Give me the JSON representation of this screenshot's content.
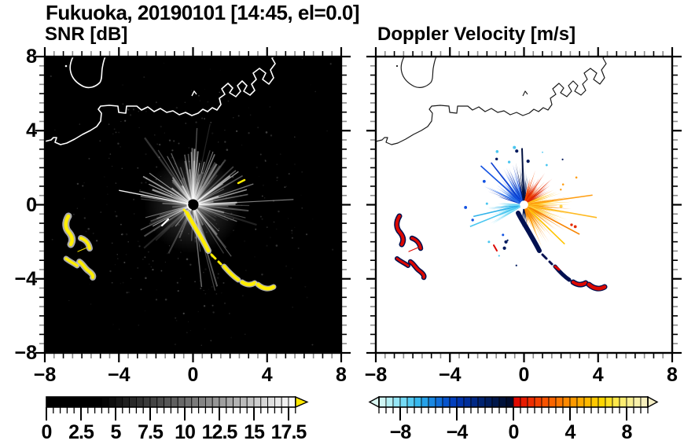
{
  "figure": {
    "title": "Fukuoka, 20190101 [14:45, el=0.0]"
  },
  "panels": {
    "snr": {
      "title": "SNR [dB]",
      "x_tick_labels": [
        "−8",
        "−4",
        "0",
        "4",
        "8"
      ],
      "y_tick_labels": [
        "8",
        "4",
        "0",
        "−4",
        "−8"
      ],
      "x_tick_values": [
        -8,
        -4,
        0,
        4,
        8
      ],
      "y_tick_values": [
        8,
        4,
        0,
        -4,
        -8
      ],
      "background": "#000000",
      "coast_color": "#ffffff"
    },
    "vel": {
      "title": "Doppler Velocity [m/s]",
      "x_tick_labels": [
        "−8",
        "−4",
        "0",
        "4",
        "8"
      ],
      "x_tick_values": [
        -8,
        -4,
        0,
        4,
        8
      ],
      "background": "#ffffff",
      "coast_color": "#1a1a1a"
    }
  },
  "axes": {
    "min": -8,
    "max": 8,
    "major_step": 4,
    "minor_step": 0.5
  },
  "colorbars": {
    "snr": {
      "tick_labels": [
        "0",
        "2.5",
        "5",
        "7.5",
        "10",
        "12.5",
        "15",
        "17.5"
      ],
      "tick_values": [
        0,
        2.5,
        5,
        7.5,
        10,
        12.5,
        15,
        17.5
      ],
      "range": [
        0,
        18
      ],
      "cell_step": 0.5,
      "colormap": "grayscale",
      "gray_ramp": [
        4,
        18
      ],
      "overflow_arrow_color": "#ffe800"
    },
    "vel": {
      "tick_labels": [
        "−8",
        "−4",
        "0",
        "4",
        "8"
      ],
      "tick_values": [
        -8,
        -4,
        0,
        4,
        8
      ],
      "range": [
        -9.5,
        9.5
      ],
      "cell_step": 0.5,
      "neg_stops": [
        "#dcf8f4",
        "#b8f0f4",
        "#8ee4f6",
        "#62d2f4",
        "#38baee",
        "#219ae6",
        "#1276dc",
        "#0754cc",
        "#0038b8",
        "#00309e",
        "#002884",
        "#002068",
        "#00184e",
        "#001038",
        "#000a26"
      ],
      "pos_stops": [
        "#dc0000",
        "#e81c00",
        "#f23a00",
        "#f85800",
        "#fc7400",
        "#fe9000",
        "#ffaa00",
        "#ffc200",
        "#ffd800",
        "#ffe740",
        "#fbee7e",
        "#f8f0a8",
        "#f5efc6"
      ],
      "under_arrow_color": "#dcf8f4",
      "over_arrow_color": "#f5efc6"
    }
  },
  "chart_data": [
    {
      "type": "heatmap",
      "title": "SNR [dB]",
      "suptitle": "Fukuoka, 20190101 [14:45, el=0.0]",
      "xlim": [
        -8,
        8
      ],
      "ylim": [
        -8,
        8
      ],
      "x_ticks": [
        -8,
        -4,
        0,
        4,
        8
      ],
      "y_ticks": [
        -8,
        -4,
        0,
        4,
        8
      ],
      "background_value": "0 dB (black)",
      "colorbar": {
        "min": 0,
        "max": 18,
        "tick_values": [
          0,
          2.5,
          5,
          7.5,
          10,
          12.5,
          15,
          17.5
        ],
        "colormap": "black to white grayscale, yellow overflow arrow"
      },
      "features": [
        {
          "name": "radar-site",
          "x": 0,
          "y": 0
        },
        {
          "name": "clutter-starburst",
          "desc": "gray radial spokes centered on radar site",
          "radius_units": 4,
          "value_dB": "3-10"
        },
        {
          "name": "coastline",
          "desc": "white Hakata Bay coastline with port piers across upper third, bay inlet at top left"
        },
        {
          "name": "high-snr-arc",
          "desc": "yellow arc of echoes from (-0.3,-0.5) curving southeast to (4.4,-4.3)",
          "value_dB": ">17.5"
        },
        {
          "name": "high-snr-cluster-sw",
          "desc": "yellow patches with gray fringes near (-6.5,-1.0) to (-5.0,-3.8)",
          "value_dB": ">17.5"
        }
      ]
    },
    {
      "type": "heatmap",
      "title": "Doppler Velocity [m/s]",
      "xlim": [
        -8,
        8
      ],
      "ylim": [
        -8,
        8
      ],
      "x_ticks": [
        -8,
        -4,
        0,
        4,
        8
      ],
      "y_ticks": [
        -8,
        -4,
        0,
        4,
        8
      ],
      "background_value": "no data (white)",
      "colorbar": {
        "min": -9.5,
        "max": 9.5,
        "tick_values": [
          -8,
          -4,
          0,
          4,
          8
        ],
        "colormap": "pale cyan to dark navy (negative), red to cream (positive), arrows both ends"
      },
      "features": [
        {
          "name": "radar-site",
          "x": 0,
          "y": 0
        },
        {
          "name": "inbound-lobe-nw",
          "desc": "blue fan up-left of site",
          "velocity_ms": "-2 to -5"
        },
        {
          "name": "inbound-lobe-wsw",
          "desc": "cyan fan down-left of site",
          "velocity_ms": "-5 to -8"
        },
        {
          "name": "near-zero-spike-n",
          "desc": "dark navy spike due north",
          "velocity_ms": "-1 to 0"
        },
        {
          "name": "outbound-lobe-e",
          "desc": "large orange/yellow fan east and southeast",
          "velocity_ms": "+2 to +6"
        },
        {
          "name": "outbound-lobe-ne",
          "desc": "red wedge up-right of site",
          "velocity_ms": "0 to +2"
        },
        {
          "name": "patches-sw-se",
          "desc": "red patches with navy fringes at (-6.5,-1..-4) and along arc to (4.4,-4.3)",
          "velocity_ms": "mixed ±"
        }
      ]
    }
  ]
}
